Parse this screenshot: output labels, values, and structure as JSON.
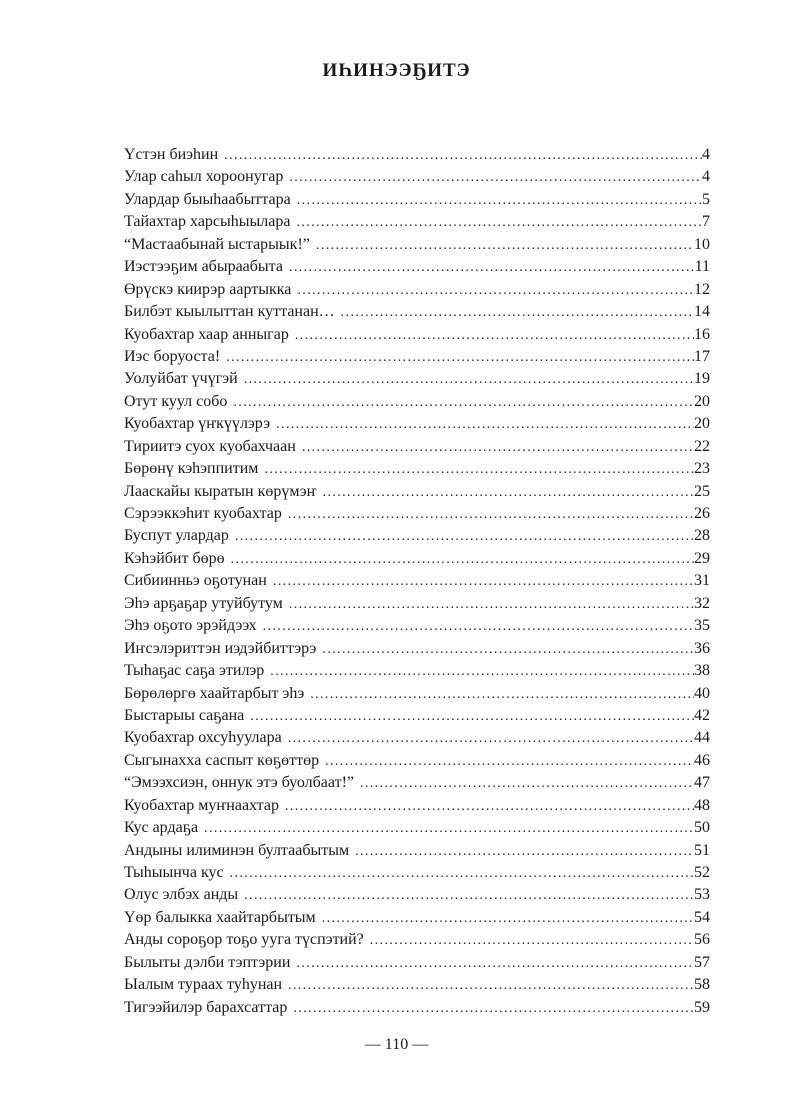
{
  "title": "ИҺИНЭЭҔИТЭ",
  "entries": [
    {
      "title": "Үстэн биэһин",
      "page": "4"
    },
    {
      "title": "Улар саһыл хороонугар",
      "page": "4"
    },
    {
      "title": "Улардар быыһаабыттара",
      "page": "5"
    },
    {
      "title": "Тайахтар харсыһыылара",
      "page": "7"
    },
    {
      "title": "“Мастаабынай ыстарыык!”",
      "page": "10"
    },
    {
      "title": "Иэстээҕим абыраабыта",
      "page": "11"
    },
    {
      "title": "Өрүскэ киирэр аартыкка",
      "page": "12"
    },
    {
      "title": "Билбэт кыылыттан куттанан…",
      "page": "14"
    },
    {
      "title": "Куобахтар хаар анныгар",
      "page": "16"
    },
    {
      "title": "Иэс боруоста!",
      "page": "17"
    },
    {
      "title": "Уолуйбат үчүгэй",
      "page": "19"
    },
    {
      "title": "Отут куул собо",
      "page": "20"
    },
    {
      "title": "Куобахтар үҥкүүлэрэ",
      "page": "20"
    },
    {
      "title": "Тириитэ суох куобахчаан",
      "page": "22"
    },
    {
      "title": "Бөрөнү кэһэппитим",
      "page": "23"
    },
    {
      "title": "Лааскайы кыратын көрүмэҥ",
      "page": "25"
    },
    {
      "title": "Сэрээккэһит куобахтар",
      "page": "26"
    },
    {
      "title": "Буспут улардар",
      "page": "28"
    },
    {
      "title": "Кэһэйбит бөрө",
      "page": "29"
    },
    {
      "title": "Сибиинньэ оҕотунан",
      "page": "31"
    },
    {
      "title": "Эһэ арҕаҕар утуйбутум",
      "page": "32"
    },
    {
      "title": "Эһэ оҕото эрэйдээх",
      "page": "35"
    },
    {
      "title": "Иҥсэлэриттэн иэдэйбиттэрэ",
      "page": "36"
    },
    {
      "title": "Тыһаҕас саҕа этилэр",
      "page": "38"
    },
    {
      "title": "Бөрөлөргө хаайтарбыт эһэ",
      "page": "40"
    },
    {
      "title": "Быстарыы саҕана",
      "page": "42"
    },
    {
      "title": "Куобахтар охсуһуулара",
      "page": "44"
    },
    {
      "title": "Сыгынахха саспыт көҕөттөр",
      "page": "46"
    },
    {
      "title": "“Эмээхсиэн, оннук этэ буолбаат!”",
      "page": "47"
    },
    {
      "title": "Куобахтар муҥнаахтар",
      "page": "48"
    },
    {
      "title": "Кус ардаҕа",
      "page": "50"
    },
    {
      "title": "Андыны илиминэн бултаабытым",
      "page": "51"
    },
    {
      "title": "Тыһыынча кус",
      "page": "52"
    },
    {
      "title": "Олус элбэх анды",
      "page": "53"
    },
    {
      "title": "Үөр балыкка хаайтарбытым",
      "page": "54"
    },
    {
      "title": "Анды сороҕор тоҕо ууга түспэтий?",
      "page": "56"
    },
    {
      "title": "Былыты дэлби тэптэрии",
      "page": "57"
    },
    {
      "title": "Ыалым тураах туһунан",
      "page": "58"
    },
    {
      "title": "Тигээйилэр барахсаттар",
      "page": "59"
    }
  ],
  "folio": "— 110 —"
}
